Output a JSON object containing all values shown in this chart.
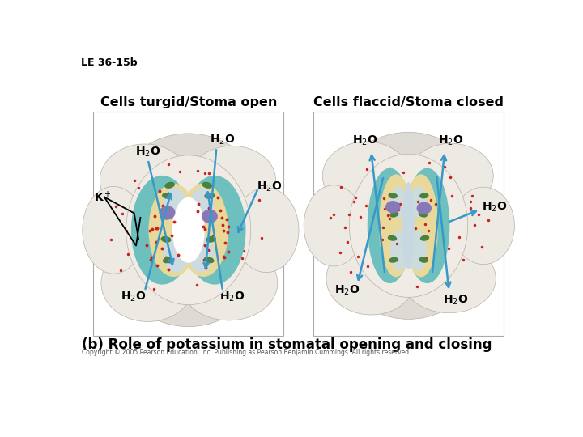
{
  "title_top_left": "LE 36-15b",
  "left_title": "Cells turgid/Stoma open",
  "right_title": "Cells flaccid/Stoma closed",
  "bottom_label": "(b) Role of potassium in stomatal opening and closing",
  "copyright": "Copyright © 2005 Pearson Education, Inc. Publishing as Pearson Benjamin Cummings. All rights reserved.",
  "bg_color": "#ffffff",
  "tissue_bg": "#e8e4de",
  "tissue_light": "#f0ece6",
  "panel_border": "#cccccc",
  "guard_cell_teal": "#6dc0be",
  "guard_cell_tan": "#e8d89a",
  "vacuole_blue": "#c8dce8",
  "nucleus_purple": "#8878b8",
  "chloroplast_green": "#4a8040",
  "dot_red": "#cc2020",
  "arrow_blue": "#3898c8",
  "text_black": "#000000"
}
